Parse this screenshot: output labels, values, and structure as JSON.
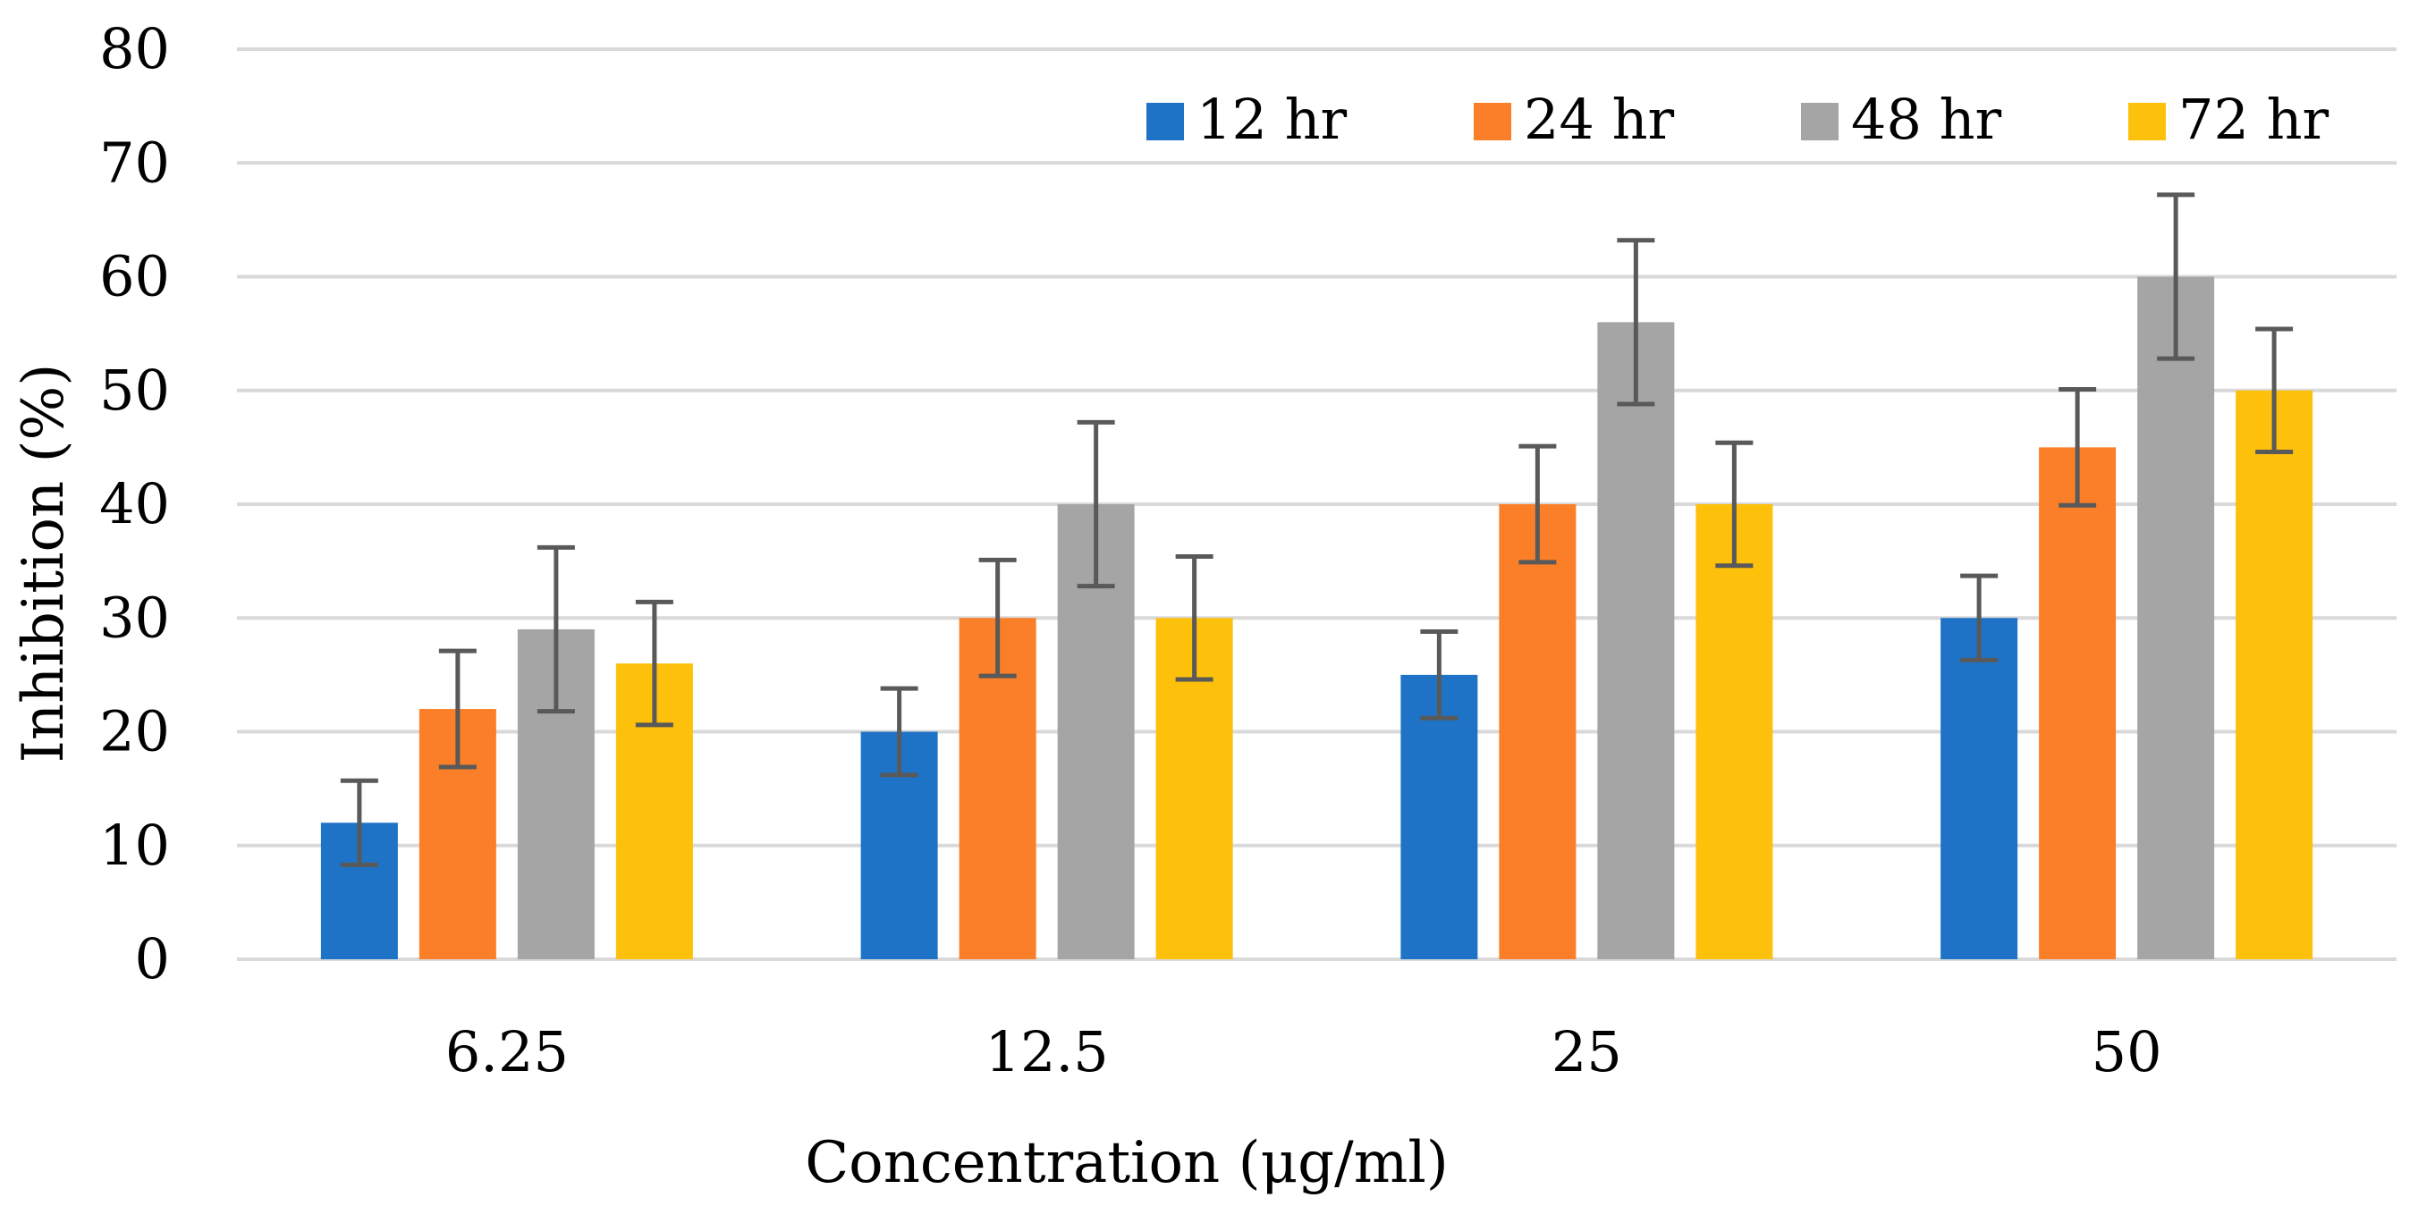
{
  "chart_data": {
    "type": "bar",
    "title": "",
    "xlabel": "Concentration (μg/ml)",
    "ylabel": "Inhibition (%)",
    "ylim": [
      0,
      80
    ],
    "yticks": [
      0,
      10,
      20,
      30,
      40,
      50,
      60,
      70,
      80
    ],
    "grid": true,
    "legend_position": "top-right",
    "categories": [
      "6.25",
      "12.5",
      "25",
      "50"
    ],
    "series": [
      {
        "name": "12 hr",
        "color": "#1f73c6",
        "values": [
          12,
          20,
          25,
          30
        ],
        "errors": [
          3.7,
          3.8,
          3.8,
          3.7
        ]
      },
      {
        "name": "24 hr",
        "color": "#fb7f29",
        "values": [
          22,
          30,
          40,
          45
        ],
        "errors": [
          5.1,
          5.1,
          5.1,
          5.1
        ]
      },
      {
        "name": "48 hr",
        "color": "#a5a5a5",
        "values": [
          29,
          40,
          56,
          60
        ],
        "errors": [
          7.2,
          7.2,
          7.2,
          7.2
        ]
      },
      {
        "name": "72 hr",
        "color": "#fdc00b",
        "values": [
          26,
          30,
          40,
          50
        ],
        "errors": [
          5.4,
          5.4,
          5.4,
          5.4
        ]
      }
    ]
  }
}
